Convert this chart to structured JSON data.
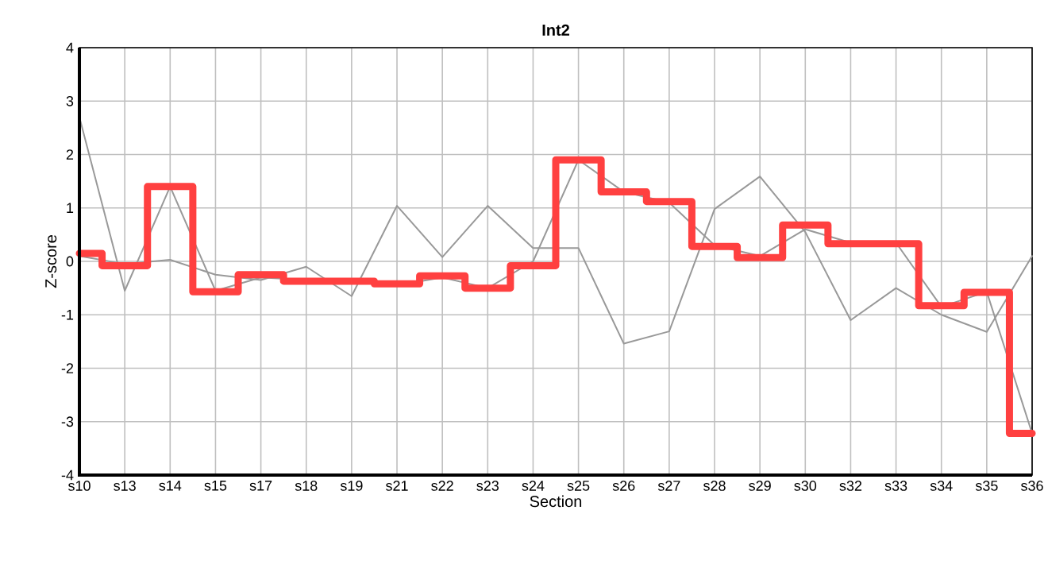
{
  "chart_data": {
    "type": "line",
    "title": "Int2",
    "xlabel": "Section",
    "ylabel": "Z-score",
    "categories": [
      "s10",
      "s13",
      "s14",
      "s15",
      "s17",
      "s18",
      "s19",
      "s21",
      "s22",
      "s23",
      "s24",
      "s25",
      "s26",
      "s27",
      "s28",
      "s29",
      "s30",
      "s32",
      "s33",
      "s34",
      "s35",
      "s36"
    ],
    "ylim": [
      -4,
      4
    ],
    "yticks": [
      -4,
      -3,
      -2,
      -1,
      0,
      1,
      2,
      3,
      4
    ],
    "grid": true,
    "legend": false,
    "marker": "none",
    "line_style": "solid",
    "series": [
      {
        "color": "#999999",
        "values": [
          2.7,
          -0.55,
          1.4,
          -0.55,
          -0.3,
          -0.35,
          -0.35,
          -0.45,
          -0.3,
          -0.5,
          0.0,
          1.9,
          1.3,
          1.1,
          0.3,
          0.1,
          0.6,
          0.35,
          0.35,
          -0.85,
          -0.57,
          -3.22
        ]
      },
      {
        "color": "#999999",
        "values": [
          0.1,
          -0.05,
          0.03,
          -0.25,
          -0.35,
          -0.1,
          -0.65,
          1.04,
          0.08,
          1.04,
          0.25,
          0.25,
          -1.54,
          -1.31,
          0.98,
          1.59,
          0.55,
          -1.1,
          -0.5,
          -1.0,
          -1.32,
          0.1
        ]
      },
      {
        "type": "step",
        "color": "#ff4040",
        "values": [
          0.15,
          -0.08,
          1.4,
          -0.57,
          -0.25,
          -0.37,
          -0.37,
          -0.42,
          -0.27,
          -0.5,
          -0.08,
          1.9,
          1.3,
          1.12,
          0.28,
          0.07,
          0.68,
          0.33,
          0.33,
          -0.83,
          -0.58,
          -3.22
        ]
      }
    ]
  }
}
